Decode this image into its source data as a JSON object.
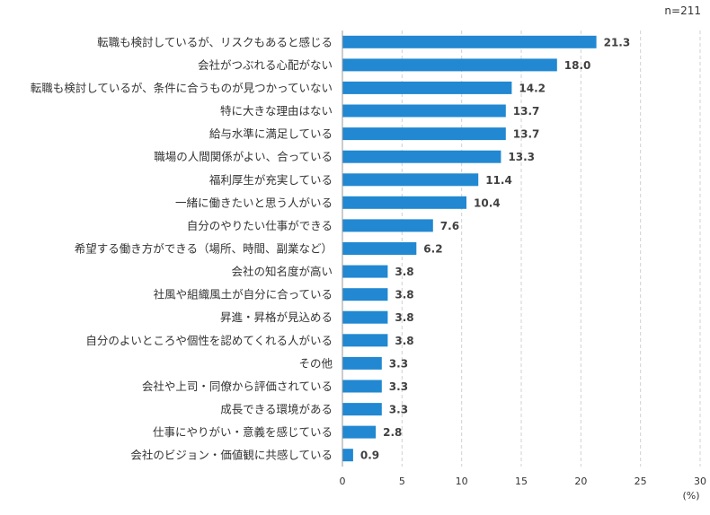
{
  "chart_data": {
    "type": "bar",
    "orientation": "horizontal",
    "n_label": "n=211",
    "unit_label": "(%)",
    "categories": [
      "転職も検討しているが、リスクもあると感じる",
      "会社がつぶれる心配がない",
      "転職も検討しているが、条件に合うものが見つかっていない",
      "特に大きな理由はない",
      "給与水準に満足している",
      "職場の人間関係がよい、合っている",
      "福利厚生が充実している",
      "一緒に働きたいと思う人がいる",
      "自分のやりたい仕事ができる",
      "希望する働き方ができる（場所、時間、副業など）",
      "会社の知名度が高い",
      "社風や組織風土が自分に合っている",
      "昇進・昇格が見込める",
      "自分のよいところや個性を認めてくれる人がいる",
      "その他",
      "会社や上司・同僚から評価されている",
      "成長できる環境がある",
      "仕事にやりがい・意義を感じている",
      "会社のビジョン・価値観に共感している"
    ],
    "values": [
      21.3,
      18.0,
      14.2,
      13.7,
      13.7,
      13.3,
      11.4,
      10.4,
      7.6,
      6.2,
      3.8,
      3.8,
      3.8,
      3.8,
      3.3,
      3.3,
      3.3,
      2.8,
      0.9
    ],
    "value_labels": [
      "21.3",
      "18.0",
      "14.2",
      "13.7",
      "13.7",
      "13.3",
      "11.4",
      "10.4",
      "7.6",
      "6.2",
      "3.8",
      "3.8",
      "3.8",
      "3.8",
      "3.3",
      "3.3",
      "3.3",
      "2.8",
      "0.9"
    ],
    "xlim": [
      0,
      30
    ],
    "xticks": [
      0,
      5,
      10,
      15,
      20,
      25,
      30
    ],
    "xtick_labels": [
      "0",
      "5",
      "10",
      "15",
      "20",
      "25",
      "30"
    ],
    "grid": "vertical-dashed",
    "bar_color": "#2188D1",
    "grid_color": "#D0D0D0",
    "axis_color": "#9A9A9A"
  }
}
